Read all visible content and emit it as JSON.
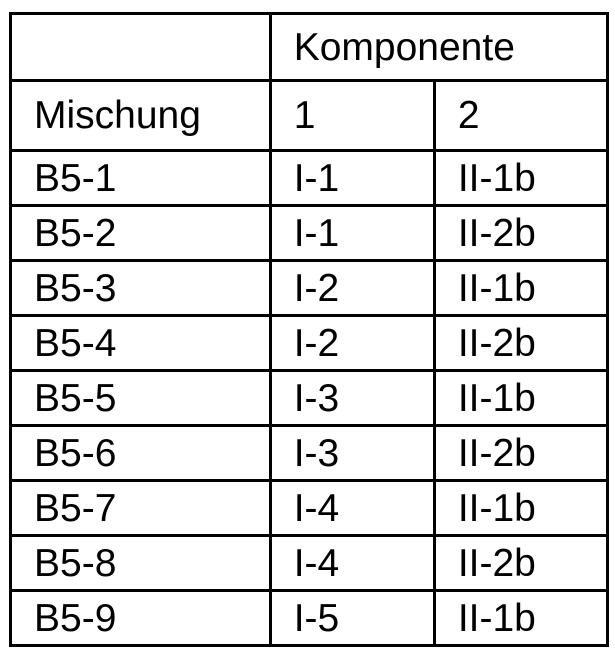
{
  "table": {
    "group_header": "Komponente",
    "headers": [
      "Mischung",
      "1",
      "2"
    ],
    "rows": [
      [
        "B5-1",
        "I-1",
        "II-1b"
      ],
      [
        "B5-2",
        "I-1",
        "II-2b"
      ],
      [
        "B5-3",
        "I-2",
        "II-1b"
      ],
      [
        "B5-4",
        "I-2",
        "II-2b"
      ],
      [
        "B5-5",
        "I-3",
        "II-1b"
      ],
      [
        "B5-6",
        "I-3",
        "II-2b"
      ],
      [
        "B5-7",
        "I-4",
        "II-1b"
      ],
      [
        "B5-8",
        "I-4",
        "II-2b"
      ],
      [
        "B5-9",
        "I-5",
        "II-1b"
      ]
    ]
  }
}
